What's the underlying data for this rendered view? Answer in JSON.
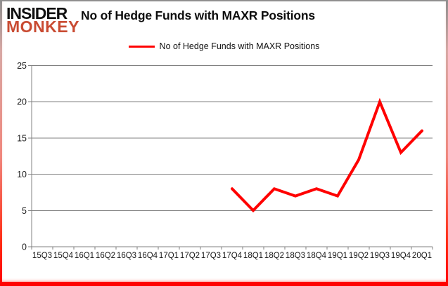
{
  "header": {
    "logo_line1": "INSIDER",
    "logo_line2": "MONKEY",
    "title": "No of Hedge Funds with MAXR Positions"
  },
  "legend": {
    "label": "No of Hedge Funds with MAXR Positions"
  },
  "colors": {
    "line": "#ff0000",
    "grid": "#808080",
    "axis": "#808080",
    "tick_text": "#1a1a1a",
    "logo_black": "#111111",
    "logo_red": "#c94b32"
  },
  "chart_data": {
    "type": "line",
    "title": "No of Hedge Funds with MAXR Positions",
    "categories": [
      "15Q3",
      "15Q4",
      "16Q1",
      "16Q2",
      "16Q3",
      "16Q4",
      "17Q1",
      "17Q2",
      "17Q3",
      "17Q4",
      "18Q1",
      "18Q2",
      "18Q3",
      "18Q4",
      "19Q1",
      "19Q2",
      "19Q3",
      "19Q4",
      "20Q1"
    ],
    "series": [
      {
        "name": "No of Hedge Funds with MAXR Positions",
        "values": [
          null,
          null,
          null,
          null,
          null,
          null,
          null,
          null,
          null,
          8,
          5,
          8,
          7,
          8,
          7,
          12,
          20,
          13,
          16
        ]
      }
    ],
    "xlabel": "",
    "ylabel": "",
    "ylim": [
      0,
      25
    ],
    "yticks": [
      0,
      5,
      10,
      15,
      20,
      25
    ],
    "grid": true,
    "legend_position": "top-center"
  }
}
